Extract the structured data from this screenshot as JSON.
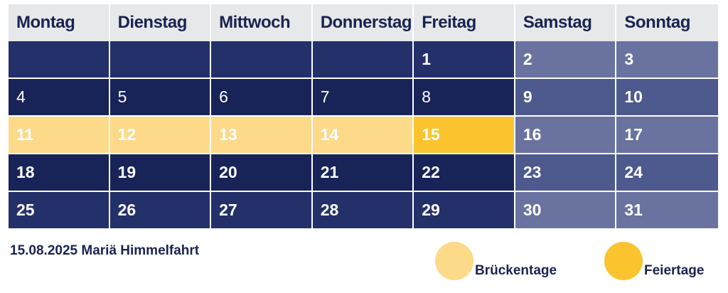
{
  "calendar": {
    "headers": [
      "Montag",
      "Dienstag",
      "Mittwoch",
      "Donnerstag",
      "Freitag",
      "Samstag",
      "Sonntag"
    ],
    "weeks": [
      [
        "",
        "",
        "",
        "",
        "1",
        "2",
        "3"
      ],
      [
        "4",
        "5",
        "6",
        "7",
        "8",
        "9",
        "10"
      ],
      [
        "11",
        "12",
        "13",
        "14",
        "15",
        "16",
        "17"
      ],
      [
        "18",
        "19",
        "20",
        "21",
        "22",
        "23",
        "24"
      ],
      [
        "25",
        "26",
        "27",
        "28",
        "29",
        "30",
        "31"
      ]
    ]
  },
  "footer": {
    "note": "15.08.2025 Mariä Himmelfahrt"
  },
  "legend": {
    "bridge_label": "Brückentage",
    "holiday_label": "Feiertage"
  },
  "colors": {
    "bridge_day": "#fdd98a",
    "holiday": "#fbc42f",
    "weekday": "#24306a",
    "weekday_alt": "#182358",
    "weekend": "#6a739f",
    "weekend_alt": "#4e5a8e",
    "header_bg": "#e6e8ea",
    "text_dark": "#1a2350"
  }
}
